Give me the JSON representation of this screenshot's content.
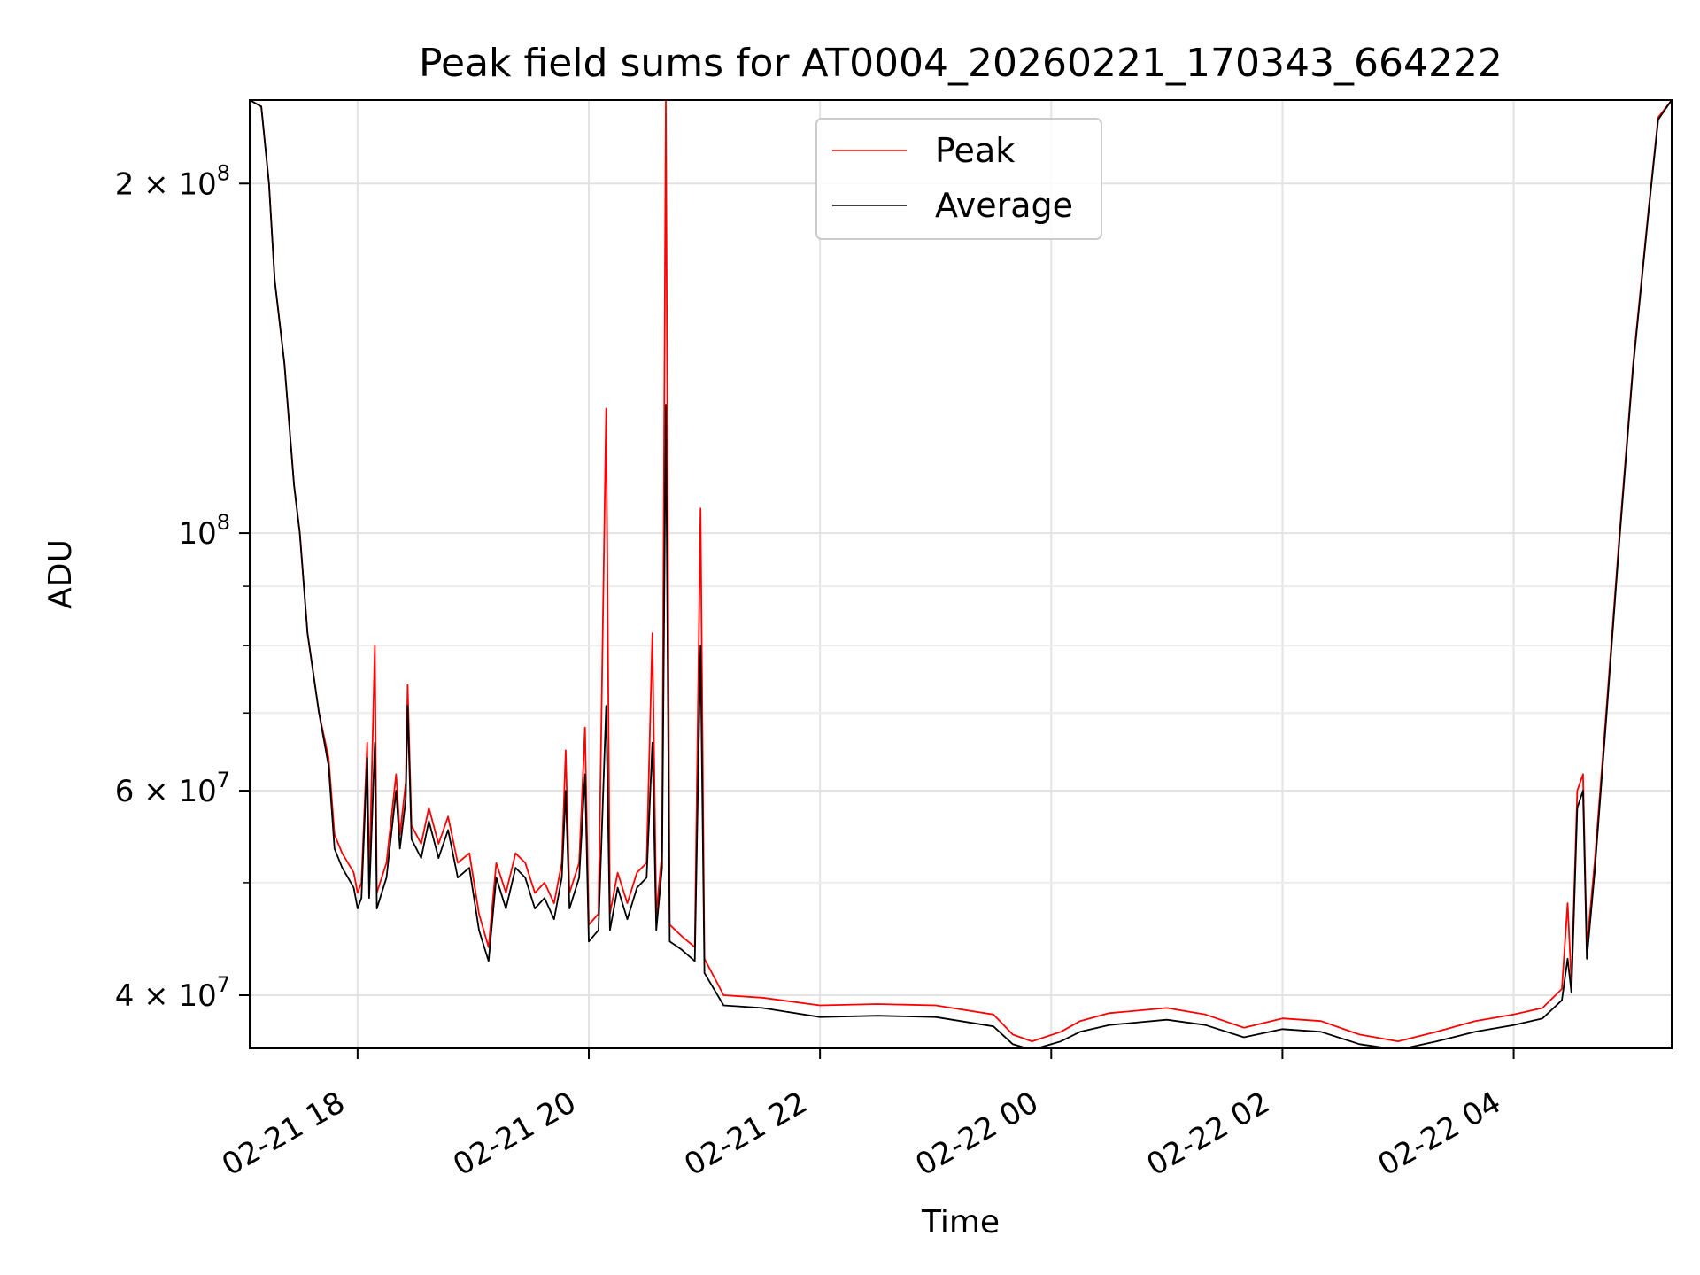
{
  "chart_data": {
    "type": "line",
    "title": "Peak field sums for AT0004_20260221_170343_664222",
    "xlabel": "Time",
    "ylabel": "ADU",
    "y_scale": "log",
    "xlim": [
      "2026-02-21 17:04",
      "2026-02-22 05:22"
    ],
    "ylim": [
      36000000,
      236000000
    ],
    "grid": true,
    "legend": {
      "placement": "top-center",
      "entries": [
        "Peak",
        "Average"
      ]
    },
    "x_ticks": [
      {
        "value": "2026-02-21 18:00",
        "label": "02-21 18"
      },
      {
        "value": "2026-02-21 20:00",
        "label": "02-21 20"
      },
      {
        "value": "2026-02-21 22:00",
        "label": "02-21 22"
      },
      {
        "value": "2026-02-22 00:00",
        "label": "02-22 00"
      },
      {
        "value": "2026-02-22 02:00",
        "label": "02-22 02"
      },
      {
        "value": "2026-02-22 04:00",
        "label": "02-22 04"
      }
    ],
    "y_ticks_major": [
      {
        "value": 40000000,
        "base": "4 × 10",
        "exp": "7"
      },
      {
        "value": 60000000,
        "base": "6 × 10",
        "exp": "7"
      },
      {
        "value": 100000000,
        "base": "10",
        "exp": "8"
      },
      {
        "value": 200000000,
        "base": "2 × 10",
        "exp": "8"
      }
    ],
    "y_ticks_minor": [
      50000000,
      70000000,
      80000000,
      90000000
    ],
    "colors": {
      "peak": "#ff0000",
      "average": "#000000"
    },
    "series": [
      {
        "name": "Peak",
        "color": "#ff0000",
        "points": [
          [
            "2026-02-21 17:04",
            236000000
          ],
          [
            "2026-02-21 17:10",
            233000000
          ],
          [
            "2026-02-21 17:14",
            200000000
          ],
          [
            "2026-02-21 17:17",
            165000000
          ],
          [
            "2026-02-21 17:22",
            140000000
          ],
          [
            "2026-02-21 17:27",
            110000000
          ],
          [
            "2026-02-21 17:30",
            100000000
          ],
          [
            "2026-02-21 17:34",
            82000000
          ],
          [
            "2026-02-21 17:40",
            70000000
          ],
          [
            "2026-02-21 17:45",
            64000000
          ],
          [
            "2026-02-21 17:48",
            55000000
          ],
          [
            "2026-02-21 17:52",
            53000000
          ],
          [
            "2026-02-21 17:55",
            52000000
          ],
          [
            "2026-02-21 17:58",
            51000000
          ],
          [
            "2026-02-21 18:00",
            49000000
          ],
          [
            "2026-02-21 18:02",
            50000000
          ],
          [
            "2026-02-21 18:05",
            66000000
          ],
          [
            "2026-02-21 18:06",
            50000000
          ],
          [
            "2026-02-21 18:09",
            80000000
          ],
          [
            "2026-02-21 18:10",
            49000000
          ],
          [
            "2026-02-21 18:15",
            52000000
          ],
          [
            "2026-02-21 18:20",
            62000000
          ],
          [
            "2026-02-21 18:22",
            55000000
          ],
          [
            "2026-02-21 18:25",
            61000000
          ],
          [
            "2026-02-21 18:26",
            74000000
          ],
          [
            "2026-02-21 18:28",
            56000000
          ],
          [
            "2026-02-21 18:33",
            54000000
          ],
          [
            "2026-02-21 18:37",
            58000000
          ],
          [
            "2026-02-21 18:42",
            54000000
          ],
          [
            "2026-02-21 18:47",
            57000000
          ],
          [
            "2026-02-21 18:52",
            52000000
          ],
          [
            "2026-02-21 18:58",
            53000000
          ],
          [
            "2026-02-21 19:03",
            47000000
          ],
          [
            "2026-02-21 19:08",
            44000000
          ],
          [
            "2026-02-21 19:12",
            52000000
          ],
          [
            "2026-02-21 19:17",
            49000000
          ],
          [
            "2026-02-21 19:22",
            53000000
          ],
          [
            "2026-02-21 19:27",
            52000000
          ],
          [
            "2026-02-21 19:32",
            49000000
          ],
          [
            "2026-02-21 19:37",
            50000000
          ],
          [
            "2026-02-21 19:42",
            48000000
          ],
          [
            "2026-02-21 19:46",
            52000000
          ],
          [
            "2026-02-21 19:48",
            65000000
          ],
          [
            "2026-02-21 19:50",
            49000000
          ],
          [
            "2026-02-21 19:55",
            52000000
          ],
          [
            "2026-02-21 19:58",
            68000000
          ],
          [
            "2026-02-21 20:00",
            46000000
          ],
          [
            "2026-02-21 20:05",
            47000000
          ],
          [
            "2026-02-21 20:09",
            128000000
          ],
          [
            "2026-02-21 20:11",
            47000000
          ],
          [
            "2026-02-21 20:15",
            51000000
          ],
          [
            "2026-02-21 20:20",
            48000000
          ],
          [
            "2026-02-21 20:25",
            51000000
          ],
          [
            "2026-02-21 20:30",
            52000000
          ],
          [
            "2026-02-21 20:33",
            82000000
          ],
          [
            "2026-02-21 20:35",
            47000000
          ],
          [
            "2026-02-21 20:38",
            53000000
          ],
          [
            "2026-02-21 20:40",
            236000000
          ],
          [
            "2026-02-21 20:42",
            46000000
          ],
          [
            "2026-02-21 20:48",
            45000000
          ],
          [
            "2026-02-21 20:55",
            44000000
          ],
          [
            "2026-02-21 20:58",
            105000000
          ],
          [
            "2026-02-21 21:00",
            43000000
          ],
          [
            "2026-02-21 21:10",
            40000000
          ],
          [
            "2026-02-21 21:30",
            39800000
          ],
          [
            "2026-02-21 22:00",
            39200000
          ],
          [
            "2026-02-21 22:30",
            39300000
          ],
          [
            "2026-02-21 23:00",
            39200000
          ],
          [
            "2026-02-21 23:30",
            38500000
          ],
          [
            "2026-02-21 23:40",
            37000000
          ],
          [
            "2026-02-21 23:50",
            36500000
          ],
          [
            "2026-02-22 00:05",
            37200000
          ],
          [
            "2026-02-22 00:15",
            38000000
          ],
          [
            "2026-02-22 00:30",
            38600000
          ],
          [
            "2026-02-22 01:00",
            39000000
          ],
          [
            "2026-02-22 01:20",
            38500000
          ],
          [
            "2026-02-22 01:40",
            37500000
          ],
          [
            "2026-02-22 02:00",
            38200000
          ],
          [
            "2026-02-22 02:20",
            38000000
          ],
          [
            "2026-02-22 02:40",
            37000000
          ],
          [
            "2026-02-22 03:00",
            36500000
          ],
          [
            "2026-02-22 03:20",
            37200000
          ],
          [
            "2026-02-22 03:40",
            38000000
          ],
          [
            "2026-02-22 04:00",
            38500000
          ],
          [
            "2026-02-22 04:15",
            39000000
          ],
          [
            "2026-02-22 04:25",
            40500000
          ],
          [
            "2026-02-22 04:28",
            48000000
          ],
          [
            "2026-02-22 04:30",
            41000000
          ],
          [
            "2026-02-22 04:33",
            60000000
          ],
          [
            "2026-02-22 04:36",
            62000000
          ],
          [
            "2026-02-22 04:38",
            44000000
          ],
          [
            "2026-02-22 04:42",
            52000000
          ],
          [
            "2026-02-22 04:48",
            70000000
          ],
          [
            "2026-02-22 04:55",
            100000000
          ],
          [
            "2026-02-22 05:02",
            140000000
          ],
          [
            "2026-02-22 05:10",
            190000000
          ],
          [
            "2026-02-22 05:15",
            228000000
          ],
          [
            "2026-02-22 05:22",
            236000000
          ]
        ]
      },
      {
        "name": "Average",
        "color": "#000000",
        "points": [
          [
            "2026-02-21 17:04",
            236000000
          ],
          [
            "2026-02-21 17:10",
            233000000
          ],
          [
            "2026-02-21 17:14",
            200000000
          ],
          [
            "2026-02-21 17:17",
            165000000
          ],
          [
            "2026-02-21 17:22",
            140000000
          ],
          [
            "2026-02-21 17:27",
            110000000
          ],
          [
            "2026-02-21 17:30",
            100000000
          ],
          [
            "2026-02-21 17:34",
            82000000
          ],
          [
            "2026-02-21 17:40",
            70000000
          ],
          [
            "2026-02-21 17:45",
            63000000
          ],
          [
            "2026-02-21 17:48",
            53500000
          ],
          [
            "2026-02-21 17:52",
            51500000
          ],
          [
            "2026-02-21 17:55",
            50500000
          ],
          [
            "2026-02-21 17:58",
            49500000
          ],
          [
            "2026-02-21 18:00",
            47500000
          ],
          [
            "2026-02-21 18:02",
            48500000
          ],
          [
            "2026-02-21 18:05",
            64000000
          ],
          [
            "2026-02-21 18:06",
            48500000
          ],
          [
            "2026-02-21 18:09",
            66000000
          ],
          [
            "2026-02-21 18:10",
            47500000
          ],
          [
            "2026-02-21 18:15",
            50500000
          ],
          [
            "2026-02-21 18:20",
            60000000
          ],
          [
            "2026-02-21 18:22",
            53500000
          ],
          [
            "2026-02-21 18:25",
            59000000
          ],
          [
            "2026-02-21 18:26",
            71000000
          ],
          [
            "2026-02-21 18:28",
            54500000
          ],
          [
            "2026-02-21 18:33",
            52500000
          ],
          [
            "2026-02-21 18:37",
            56500000
          ],
          [
            "2026-02-21 18:42",
            52500000
          ],
          [
            "2026-02-21 18:47",
            55500000
          ],
          [
            "2026-02-21 18:52",
            50500000
          ],
          [
            "2026-02-21 18:58",
            51500000
          ],
          [
            "2026-02-21 19:03",
            45500000
          ],
          [
            "2026-02-21 19:08",
            42800000
          ],
          [
            "2026-02-21 19:12",
            50500000
          ],
          [
            "2026-02-21 19:17",
            47500000
          ],
          [
            "2026-02-21 19:22",
            51500000
          ],
          [
            "2026-02-21 19:27",
            50500000
          ],
          [
            "2026-02-21 19:32",
            47500000
          ],
          [
            "2026-02-21 19:37",
            48500000
          ],
          [
            "2026-02-21 19:42",
            46500000
          ],
          [
            "2026-02-21 19:46",
            50500000
          ],
          [
            "2026-02-21 19:48",
            60000000
          ],
          [
            "2026-02-21 19:50",
            47500000
          ],
          [
            "2026-02-21 19:55",
            50500000
          ],
          [
            "2026-02-21 19:58",
            62000000
          ],
          [
            "2026-02-21 20:00",
            44500000
          ],
          [
            "2026-02-21 20:05",
            45500000
          ],
          [
            "2026-02-21 20:09",
            71000000
          ],
          [
            "2026-02-21 20:11",
            45500000
          ],
          [
            "2026-02-21 20:15",
            49500000
          ],
          [
            "2026-02-21 20:20",
            46500000
          ],
          [
            "2026-02-21 20:25",
            49500000
          ],
          [
            "2026-02-21 20:30",
            50500000
          ],
          [
            "2026-02-21 20:33",
            66000000
          ],
          [
            "2026-02-21 20:35",
            45500000
          ],
          [
            "2026-02-21 20:38",
            51500000
          ],
          [
            "2026-02-21 20:40",
            129000000
          ],
          [
            "2026-02-21 20:42",
            44500000
          ],
          [
            "2026-02-21 20:48",
            43800000
          ],
          [
            "2026-02-21 20:55",
            42800000
          ],
          [
            "2026-02-21 20:58",
            80000000
          ],
          [
            "2026-02-21 21:00",
            41800000
          ],
          [
            "2026-02-21 21:10",
            39200000
          ],
          [
            "2026-02-21 21:30",
            39000000
          ],
          [
            "2026-02-21 22:00",
            38300000
          ],
          [
            "2026-02-21 22:30",
            38400000
          ],
          [
            "2026-02-21 23:00",
            38300000
          ],
          [
            "2026-02-21 23:30",
            37600000
          ],
          [
            "2026-02-21 23:40",
            36300000
          ],
          [
            "2026-02-21 23:50",
            35900000
          ],
          [
            "2026-02-22 00:05",
            36500000
          ],
          [
            "2026-02-22 00:15",
            37200000
          ],
          [
            "2026-02-22 00:30",
            37700000
          ],
          [
            "2026-02-22 01:00",
            38100000
          ],
          [
            "2026-02-22 01:20",
            37700000
          ],
          [
            "2026-02-22 01:40",
            36800000
          ],
          [
            "2026-02-22 02:00",
            37400000
          ],
          [
            "2026-02-22 02:20",
            37200000
          ],
          [
            "2026-02-22 02:40",
            36300000
          ],
          [
            "2026-02-22 03:00",
            35900000
          ],
          [
            "2026-02-22 03:20",
            36500000
          ],
          [
            "2026-02-22 03:40",
            37200000
          ],
          [
            "2026-02-22 04:00",
            37700000
          ],
          [
            "2026-02-22 04:15",
            38200000
          ],
          [
            "2026-02-22 04:25",
            39600000
          ],
          [
            "2026-02-22 04:28",
            43000000
          ],
          [
            "2026-02-22 04:30",
            40200000
          ],
          [
            "2026-02-22 04:33",
            58000000
          ],
          [
            "2026-02-22 04:36",
            60000000
          ],
          [
            "2026-02-22 04:38",
            43000000
          ],
          [
            "2026-02-22 04:42",
            51000000
          ],
          [
            "2026-02-22 04:48",
            69000000
          ],
          [
            "2026-02-22 04:55",
            99000000
          ],
          [
            "2026-02-22 05:02",
            139000000
          ],
          [
            "2026-02-22 05:10",
            189000000
          ],
          [
            "2026-02-22 05:15",
            227000000
          ],
          [
            "2026-02-22 05:22",
            236000000
          ]
        ]
      }
    ]
  }
}
